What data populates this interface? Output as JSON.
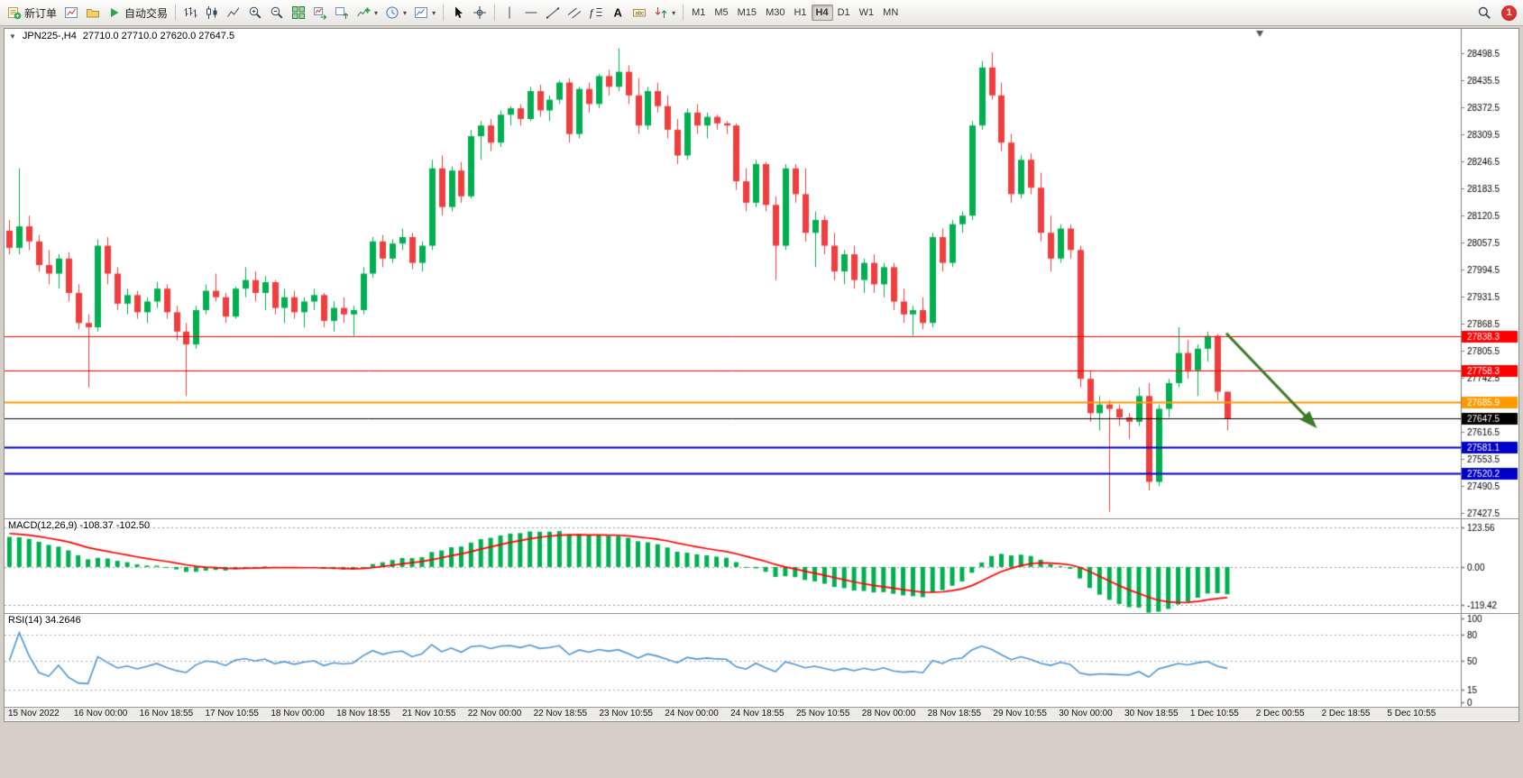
{
  "toolbar": {
    "groups": [
      {
        "type": "labeled",
        "name": "new-order",
        "label": "新订单",
        "icon": "new-order"
      },
      {
        "type": "icon",
        "name": "new-chart"
      },
      {
        "type": "icon",
        "name": "profiles"
      },
      {
        "type": "labeled",
        "name": "autotrade",
        "label": "自动交易",
        "icon": "autotrade"
      },
      {
        "type": "sep"
      },
      {
        "type": "icon",
        "name": "bar-chart"
      },
      {
        "type": "icon",
        "name": "candlestick-chart"
      },
      {
        "type": "icon",
        "name": "line-chart"
      },
      {
        "type": "icon",
        "name": "zoom-in"
      },
      {
        "type": "icon",
        "name": "zoom-out"
      },
      {
        "type": "icon",
        "name": "tile-windows"
      },
      {
        "type": "icon",
        "name": "auto-scroll"
      },
      {
        "type": "icon",
        "name": "chart-shift"
      },
      {
        "type": "icon",
        "name": "indicators",
        "dropdown": true
      },
      {
        "type": "icon",
        "name": "periods",
        "dropdown": true
      },
      {
        "type": "icon",
        "name": "templates",
        "dropdown": true
      },
      {
        "type": "sep"
      },
      {
        "type": "icon",
        "name": "cursor"
      },
      {
        "type": "icon",
        "name": "crosshair"
      },
      {
        "type": "sep"
      },
      {
        "type": "icon",
        "name": "vertical-line"
      },
      {
        "type": "icon",
        "name": "horizontal-line"
      },
      {
        "type": "icon",
        "name": "trendline"
      },
      {
        "type": "icon",
        "name": "equidistant-channel"
      },
      {
        "type": "icon",
        "name": "fibonacci"
      },
      {
        "type": "icon",
        "name": "text"
      },
      {
        "type": "icon",
        "name": "text-label"
      },
      {
        "type": "icon",
        "name": "arrows",
        "dropdown": true
      },
      {
        "type": "sep"
      },
      {
        "type": "timeframes"
      }
    ],
    "timeframes": [
      "M1",
      "M5",
      "M15",
      "M30",
      "H1",
      "H4",
      "D1",
      "W1",
      "MN"
    ],
    "active_timeframe": "H4",
    "notification_count": "1"
  },
  "chart": {
    "symbol_label": "JPN225-,H4",
    "ohlc_text": "27710.0 27710.0 27620.0 27647.5"
  },
  "indicators": {
    "macd_label": "MACD(12,26,9) -108.37 -102.50",
    "rsi_label": "RSI(14) 34.2646"
  },
  "chart_data": {
    "type": "candlestick",
    "symbol": "JPN225-",
    "timeframe": "H4",
    "ohlc_current": {
      "open": "27710.0",
      "high": "27710.0",
      "low": "27620.0",
      "close": "27647.5"
    },
    "price_axis": {
      "min": 27415,
      "max": 28555,
      "labels": [
        "28498.5",
        "28435.5",
        "28372.5",
        "28309.5",
        "28246.5",
        "28183.5",
        "28120.5",
        "28057.5",
        "27994.5",
        "27931.5",
        "27868.5",
        "27805.5",
        "27742.5",
        "27679.5",
        "27616.5",
        "27553.5",
        "27490.5",
        "27427.5"
      ]
    },
    "candles": [
      [
        28085,
        28110,
        28030,
        28045
      ],
      [
        28045,
        28230,
        28030,
        28095
      ],
      [
        28095,
        28120,
        28040,
        28060
      ],
      [
        28060,
        28075,
        27990,
        28005
      ],
      [
        28005,
        28040,
        27960,
        27985
      ],
      [
        27985,
        28030,
        27950,
        28020
      ],
      [
        28020,
        28035,
        27920,
        27940
      ],
      [
        27940,
        27960,
        27855,
        27870
      ],
      [
        27870,
        27890,
        27720,
        27860
      ],
      [
        27860,
        28065,
        27850,
        28050
      ],
      [
        28050,
        28070,
        27960,
        27985
      ],
      [
        27985,
        28000,
        27900,
        27915
      ],
      [
        27915,
        27950,
        27890,
        27935
      ],
      [
        27935,
        27945,
        27880,
        27895
      ],
      [
        27895,
        27930,
        27870,
        27920
      ],
      [
        27920,
        27965,
        27905,
        27950
      ],
      [
        27950,
        27960,
        27880,
        27895
      ],
      [
        27895,
        27910,
        27830,
        27850
      ],
      [
        27850,
        27870,
        27700,
        27820
      ],
      [
        27820,
        27910,
        27810,
        27900
      ],
      [
        27900,
        27960,
        27890,
        27945
      ],
      [
        27945,
        27985,
        27920,
        27930
      ],
      [
        27930,
        27940,
        27870,
        27885
      ],
      [
        27885,
        27955,
        27880,
        27950
      ],
      [
        27950,
        28000,
        27930,
        27970
      ],
      [
        27970,
        27990,
        27920,
        27940
      ],
      [
        27940,
        27980,
        27900,
        27965
      ],
      [
        27965,
        27970,
        27890,
        27905
      ],
      [
        27905,
        27950,
        27870,
        27930
      ],
      [
        27930,
        27945,
        27880,
        27895
      ],
      [
        27895,
        27930,
        27860,
        27920
      ],
      [
        27920,
        27950,
        27900,
        27935
      ],
      [
        27935,
        27940,
        27860,
        27875
      ],
      [
        27875,
        27920,
        27850,
        27905
      ],
      [
        27905,
        27930,
        27870,
        27890
      ],
      [
        27890,
        27910,
        27840,
        27900
      ],
      [
        27900,
        28000,
        27890,
        27985
      ],
      [
        27985,
        28070,
        27975,
        28060
      ],
      [
        28060,
        28075,
        28000,
        28020
      ],
      [
        28020,
        28065,
        28010,
        28055
      ],
      [
        28055,
        28090,
        28040,
        28070
      ],
      [
        28070,
        28080,
        27995,
        28010
      ],
      [
        28010,
        28060,
        27990,
        28050
      ],
      [
        28050,
        28250,
        28040,
        28230
      ],
      [
        28230,
        28260,
        28120,
        28140
      ],
      [
        28140,
        28235,
        28130,
        28225
      ],
      [
        28225,
        28245,
        28150,
        28165
      ],
      [
        28165,
        28320,
        28160,
        28305
      ],
      [
        28305,
        28340,
        28250,
        28330
      ],
      [
        28330,
        28345,
        28270,
        28290
      ],
      [
        28290,
        28365,
        28280,
        28355
      ],
      [
        28355,
        28375,
        28330,
        28370
      ],
      [
        28370,
        28380,
        28330,
        28345
      ],
      [
        28345,
        28420,
        28340,
        28410
      ],
      [
        28410,
        28425,
        28350,
        28365
      ],
      [
        28365,
        28400,
        28340,
        28390
      ],
      [
        28390,
        28435,
        28380,
        28430
      ],
      [
        28430,
        28440,
        28290,
        28310
      ],
      [
        28310,
        28420,
        28300,
        28415
      ],
      [
        28415,
        28430,
        28360,
        28380
      ],
      [
        28380,
        28450,
        28370,
        28445
      ],
      [
        28445,
        28460,
        28400,
        28420
      ],
      [
        28420,
        28510,
        28410,
        28455
      ],
      [
        28455,
        28470,
        28380,
        28400
      ],
      [
        28400,
        28440,
        28310,
        28330
      ],
      [
        28330,
        28420,
        28320,
        28410
      ],
      [
        28410,
        28430,
        28360,
        28375
      ],
      [
        28375,
        28400,
        28300,
        28320
      ],
      [
        28320,
        28345,
        28240,
        28260
      ],
      [
        28260,
        28370,
        28250,
        28360
      ],
      [
        28360,
        28380,
        28310,
        28330
      ],
      [
        28330,
        28360,
        28300,
        28350
      ],
      [
        28350,
        28355,
        28320,
        28335
      ],
      [
        28335,
        28340,
        28310,
        28330
      ],
      [
        28330,
        28335,
        28180,
        28200
      ],
      [
        28200,
        28230,
        28130,
        28150
      ],
      [
        28150,
        28250,
        28140,
        28240
      ],
      [
        28240,
        28245,
        28130,
        28145
      ],
      [
        28145,
        28165,
        27970,
        28050
      ],
      [
        28050,
        28240,
        28040,
        28230
      ],
      [
        28230,
        28240,
        28150,
        28170
      ],
      [
        28170,
        28230,
        28060,
        28080
      ],
      [
        28080,
        28130,
        28000,
        28110
      ],
      [
        28110,
        28120,
        28030,
        28050
      ],
      [
        28050,
        28080,
        27970,
        27990
      ],
      [
        27990,
        28040,
        27960,
        28030
      ],
      [
        28030,
        28050,
        27950,
        27970
      ],
      [
        27970,
        28020,
        27940,
        28010
      ],
      [
        28010,
        28030,
        27940,
        27960
      ],
      [
        27960,
        28010,
        27930,
        28000
      ],
      [
        28000,
        28010,
        27900,
        27920
      ],
      [
        27920,
        27950,
        27870,
        27890
      ],
      [
        27890,
        27910,
        27840,
        27900
      ],
      [
        27900,
        27930,
        27855,
        27870
      ],
      [
        27870,
        28080,
        27860,
        28070
      ],
      [
        28070,
        28090,
        27990,
        28010
      ],
      [
        28010,
        28110,
        28000,
        28100
      ],
      [
        28100,
        28130,
        28080,
        28120
      ],
      [
        28120,
        28340,
        28110,
        28330
      ],
      [
        28330,
        28480,
        28320,
        28465
      ],
      [
        28465,
        28500,
        28390,
        28400
      ],
      [
        28400,
        28430,
        28270,
        28290
      ],
      [
        28290,
        28310,
        28150,
        28170
      ],
      [
        28170,
        28260,
        28160,
        28250
      ],
      [
        28250,
        28265,
        28170,
        28185
      ],
      [
        28185,
        28220,
        28060,
        28080
      ],
      [
        28080,
        28120,
        27990,
        28020
      ],
      [
        28020,
        28100,
        28010,
        28090
      ],
      [
        28090,
        28100,
        28020,
        28040
      ],
      [
        28040,
        28050,
        27720,
        27740
      ],
      [
        27740,
        27760,
        27640,
        27660
      ],
      [
        27660,
        27700,
        27620,
        27680
      ],
      [
        27680,
        27690,
        27430,
        27670
      ],
      [
        27670,
        27680,
        27630,
        27650
      ],
      [
        27650,
        27660,
        27600,
        27640
      ],
      [
        27640,
        27720,
        27630,
        27700
      ],
      [
        27700,
        27730,
        27480,
        27500
      ],
      [
        27500,
        27680,
        27490,
        27670
      ],
      [
        27670,
        27740,
        27650,
        27730
      ],
      [
        27730,
        27860,
        27720,
        27800
      ],
      [
        27800,
        27830,
        27740,
        27760
      ],
      [
        27760,
        27820,
        27700,
        27810
      ],
      [
        27810,
        27850,
        27780,
        27840
      ],
      [
        27840,
        27845,
        27690,
        27710
      ],
      [
        27710,
        27710,
        27620,
        27647.5
      ]
    ],
    "time_labels": [
      "15 Nov 2022",
      "16 Nov 00:00",
      "16 Nov 18:55",
      "17 Nov 10:55",
      "18 Nov 00:00",
      "18 Nov 18:55",
      "21 Nov 10:55",
      "22 Nov 00:00",
      "22 Nov 18:55",
      "23 Nov 10:55",
      "24 Nov 00:00",
      "24 Nov 18:55",
      "25 Nov 10:55",
      "28 Nov 00:00",
      "28 Nov 18:55",
      "29 Nov 10:55",
      "30 Nov 00:00",
      "30 Nov 18:55",
      "1 Dec 10:55",
      "2 Dec 00:55",
      "2 Dec 18:55",
      "5 Dec 10:55"
    ],
    "hlines": [
      {
        "price": 27838.3,
        "label": "27838.3",
        "color": "#FF0000",
        "width": 1
      },
      {
        "price": 27758.3,
        "label": "27758.3",
        "color": "#FF0000",
        "width": 1
      },
      {
        "price": 27685.9,
        "label": "27685.9",
        "color": "#FF9900",
        "width": 2
      },
      {
        "price": 27647.5,
        "label": "27647.5",
        "color": "#000000",
        "width": 1
      },
      {
        "price": 27581.1,
        "label": "27581.1",
        "color": "#0000CC",
        "width": 2
      },
      {
        "price": 27520.2,
        "label": "27520.2",
        "color": "#0000CC",
        "width": 2
      }
    ],
    "arrow": {
      "x1_frac": 0.839,
      "price1": 27846,
      "x2_frac": 0.897,
      "price2": 27640,
      "color": "#3C7A28"
    },
    "shift_marker_frac": 0.862,
    "candle_span_frac": 0.843,
    "colors": {
      "bull": "#00B050",
      "bear": "#F03E3E",
      "bg": "#FFFFFF",
      "axis_text": "#000000"
    },
    "macd": {
      "label": "MACD(12,26,9) -108.37 -102.50",
      "axis_labels": [
        {
          "text": "123.56",
          "value": 123.56
        },
        {
          "text": "0.00",
          "value": 0
        },
        {
          "text": "-119.42",
          "value": -119.42
        }
      ],
      "range": [
        -145,
        150
      ],
      "histogram_color": "#00B050",
      "signal_color": "#FF0000"
    },
    "rsi": {
      "label": "RSI(14) 34.2646",
      "levels": [
        80,
        50,
        15
      ],
      "axis_labels": [
        {
          "text": "100",
          "value": 100
        },
        {
          "text": "80",
          "value": 80
        },
        {
          "text": "50",
          "value": 50
        },
        {
          "text": "15",
          "value": 15
        },
        {
          "text": "0",
          "value": 0
        }
      ],
      "line_color": "#4F97D7",
      "range": [
        0,
        100
      ]
    }
  }
}
